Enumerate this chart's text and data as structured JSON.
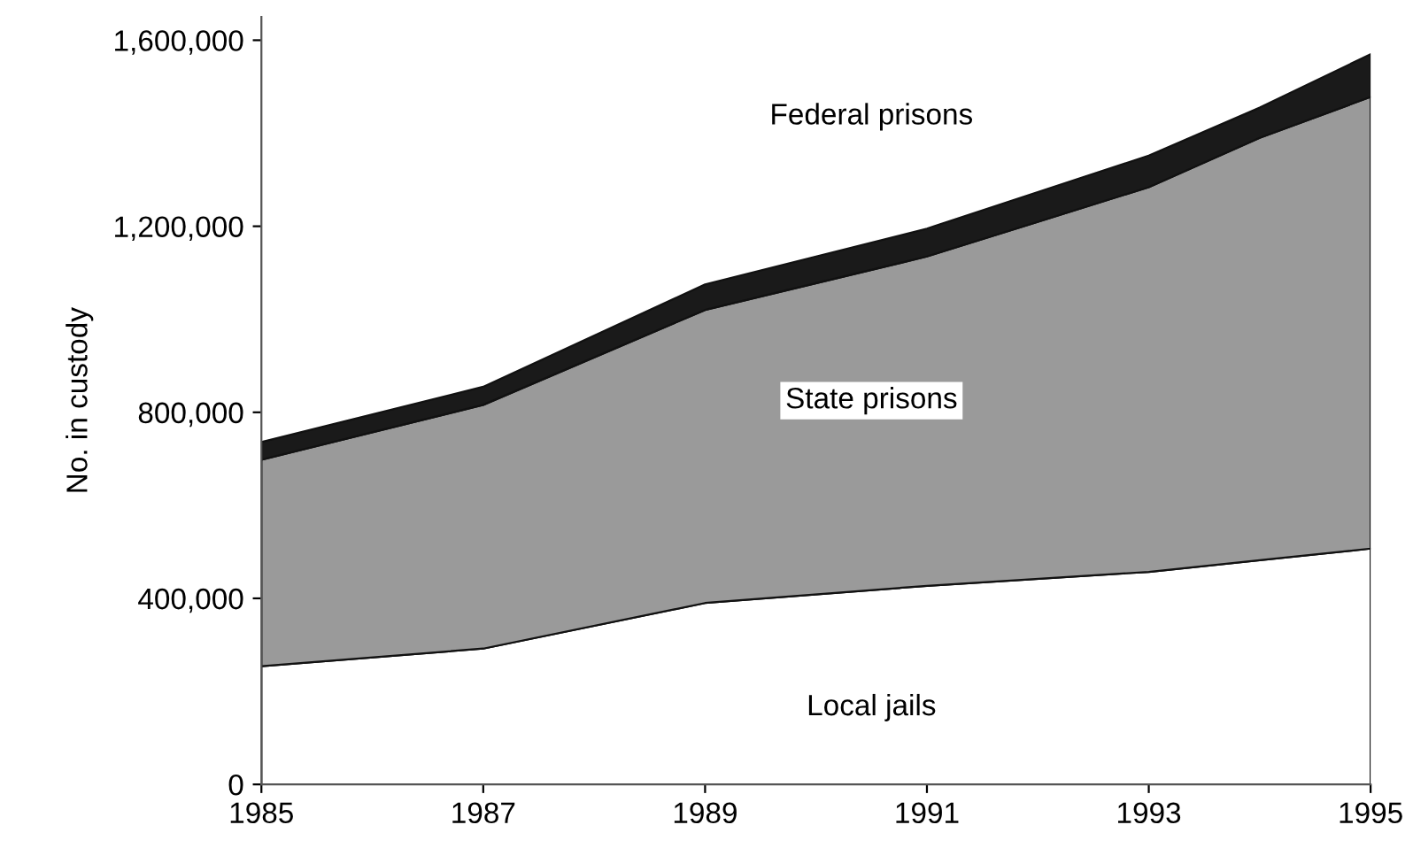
{
  "chart_data": {
    "type": "area",
    "stacked": true,
    "ylabel": "No. in custody",
    "x": [
      1985,
      1987,
      1989,
      1991,
      1993,
      1994,
      1995
    ],
    "series": [
      {
        "name": "Local jails",
        "color": "#ffffff",
        "values": [
          254000,
          292000,
          390000,
          427000,
          457000,
          482000,
          507000
        ]
      },
      {
        "name": "State prisons",
        "color": "#9a9a9a",
        "values": [
          444000,
          524000,
          630000,
          708000,
          827000,
          908000,
          971000
        ]
      },
      {
        "name": "Federal prisons",
        "color": "#1a1a1a",
        "values": [
          38000,
          39000,
          55000,
          60000,
          68000,
          65000,
          92000
        ]
      }
    ],
    "xlim": [
      1985,
      1995
    ],
    "xticks": [
      1985,
      1987,
      1989,
      1991,
      1993,
      1995
    ],
    "ylim": [
      0,
      1650000
    ],
    "yticks": [
      {
        "value": 0,
        "label": "0"
      },
      {
        "value": 400000,
        "label": "400,000"
      },
      {
        "value": 800000,
        "label": "800,000"
      },
      {
        "value": 1200000,
        "label": "1,200,000"
      },
      {
        "value": 1600000,
        "label": "1,600,000"
      }
    ],
    "grid": false,
    "legend": false
  }
}
